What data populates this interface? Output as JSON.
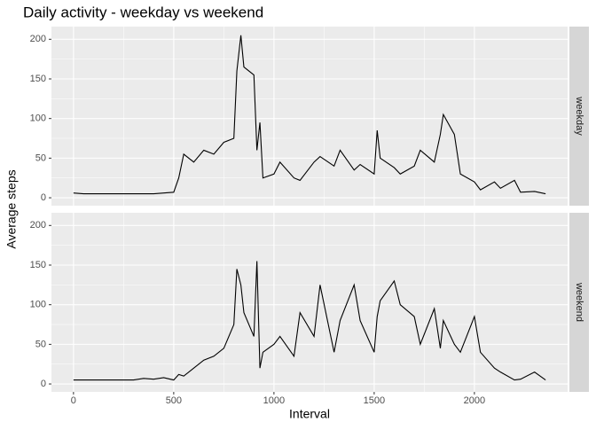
{
  "chart_data": {
    "type": "line",
    "title": "Daily activity - weekday vs weekend",
    "xlabel": "Interval",
    "ylabel": "Average steps",
    "facet": true,
    "grid": true,
    "minor_grid": true,
    "x": [
      0,
      50,
      100,
      150,
      200,
      250,
      300,
      350,
      400,
      450,
      500,
      525,
      550,
      600,
      650,
      700,
      750,
      800,
      815,
      835,
      850,
      900,
      915,
      930,
      945,
      1000,
      1030,
      1100,
      1130,
      1200,
      1230,
      1300,
      1330,
      1400,
      1430,
      1500,
      1515,
      1530,
      1600,
      1630,
      1700,
      1730,
      1800,
      1830,
      1845,
      1900,
      1930,
      2000,
      2030,
      2100,
      2130,
      2200,
      2230,
      2300,
      2355
    ],
    "series": [
      {
        "name": "weekday",
        "color": "#000000",
        "values": [
          6,
          5,
          5,
          5,
          5,
          5,
          5,
          5,
          5,
          6,
          7,
          25,
          55,
          45,
          60,
          55,
          70,
          75,
          160,
          205,
          165,
          155,
          60,
          95,
          25,
          30,
          45,
          25,
          22,
          45,
          52,
          40,
          60,
          35,
          42,
          30,
          85,
          50,
          38,
          30,
          40,
          60,
          45,
          80,
          105,
          80,
          30,
          20,
          10,
          20,
          12,
          22,
          7,
          8,
          5
        ]
      },
      {
        "name": "weekend",
        "color": "#000000",
        "values": [
          5,
          5,
          5,
          5,
          5,
          5,
          5,
          7,
          6,
          8,
          5,
          12,
          10,
          20,
          30,
          35,
          45,
          75,
          145,
          125,
          90,
          60,
          155,
          20,
          40,
          50,
          60,
          35,
          90,
          60,
          125,
          40,
          80,
          125,
          80,
          40,
          85,
          105,
          130,
          100,
          85,
          50,
          95,
          45,
          80,
          50,
          40,
          85,
          40,
          20,
          15,
          5,
          6,
          15,
          5
        ]
      }
    ],
    "xlim": [
      -110,
      2465
    ],
    "xticks": [
      0,
      500,
      1000,
      1500,
      2000
    ],
    "ylim": [
      -10,
      216
    ],
    "yticks": [
      0,
      50,
      100,
      150,
      200
    ]
  }
}
